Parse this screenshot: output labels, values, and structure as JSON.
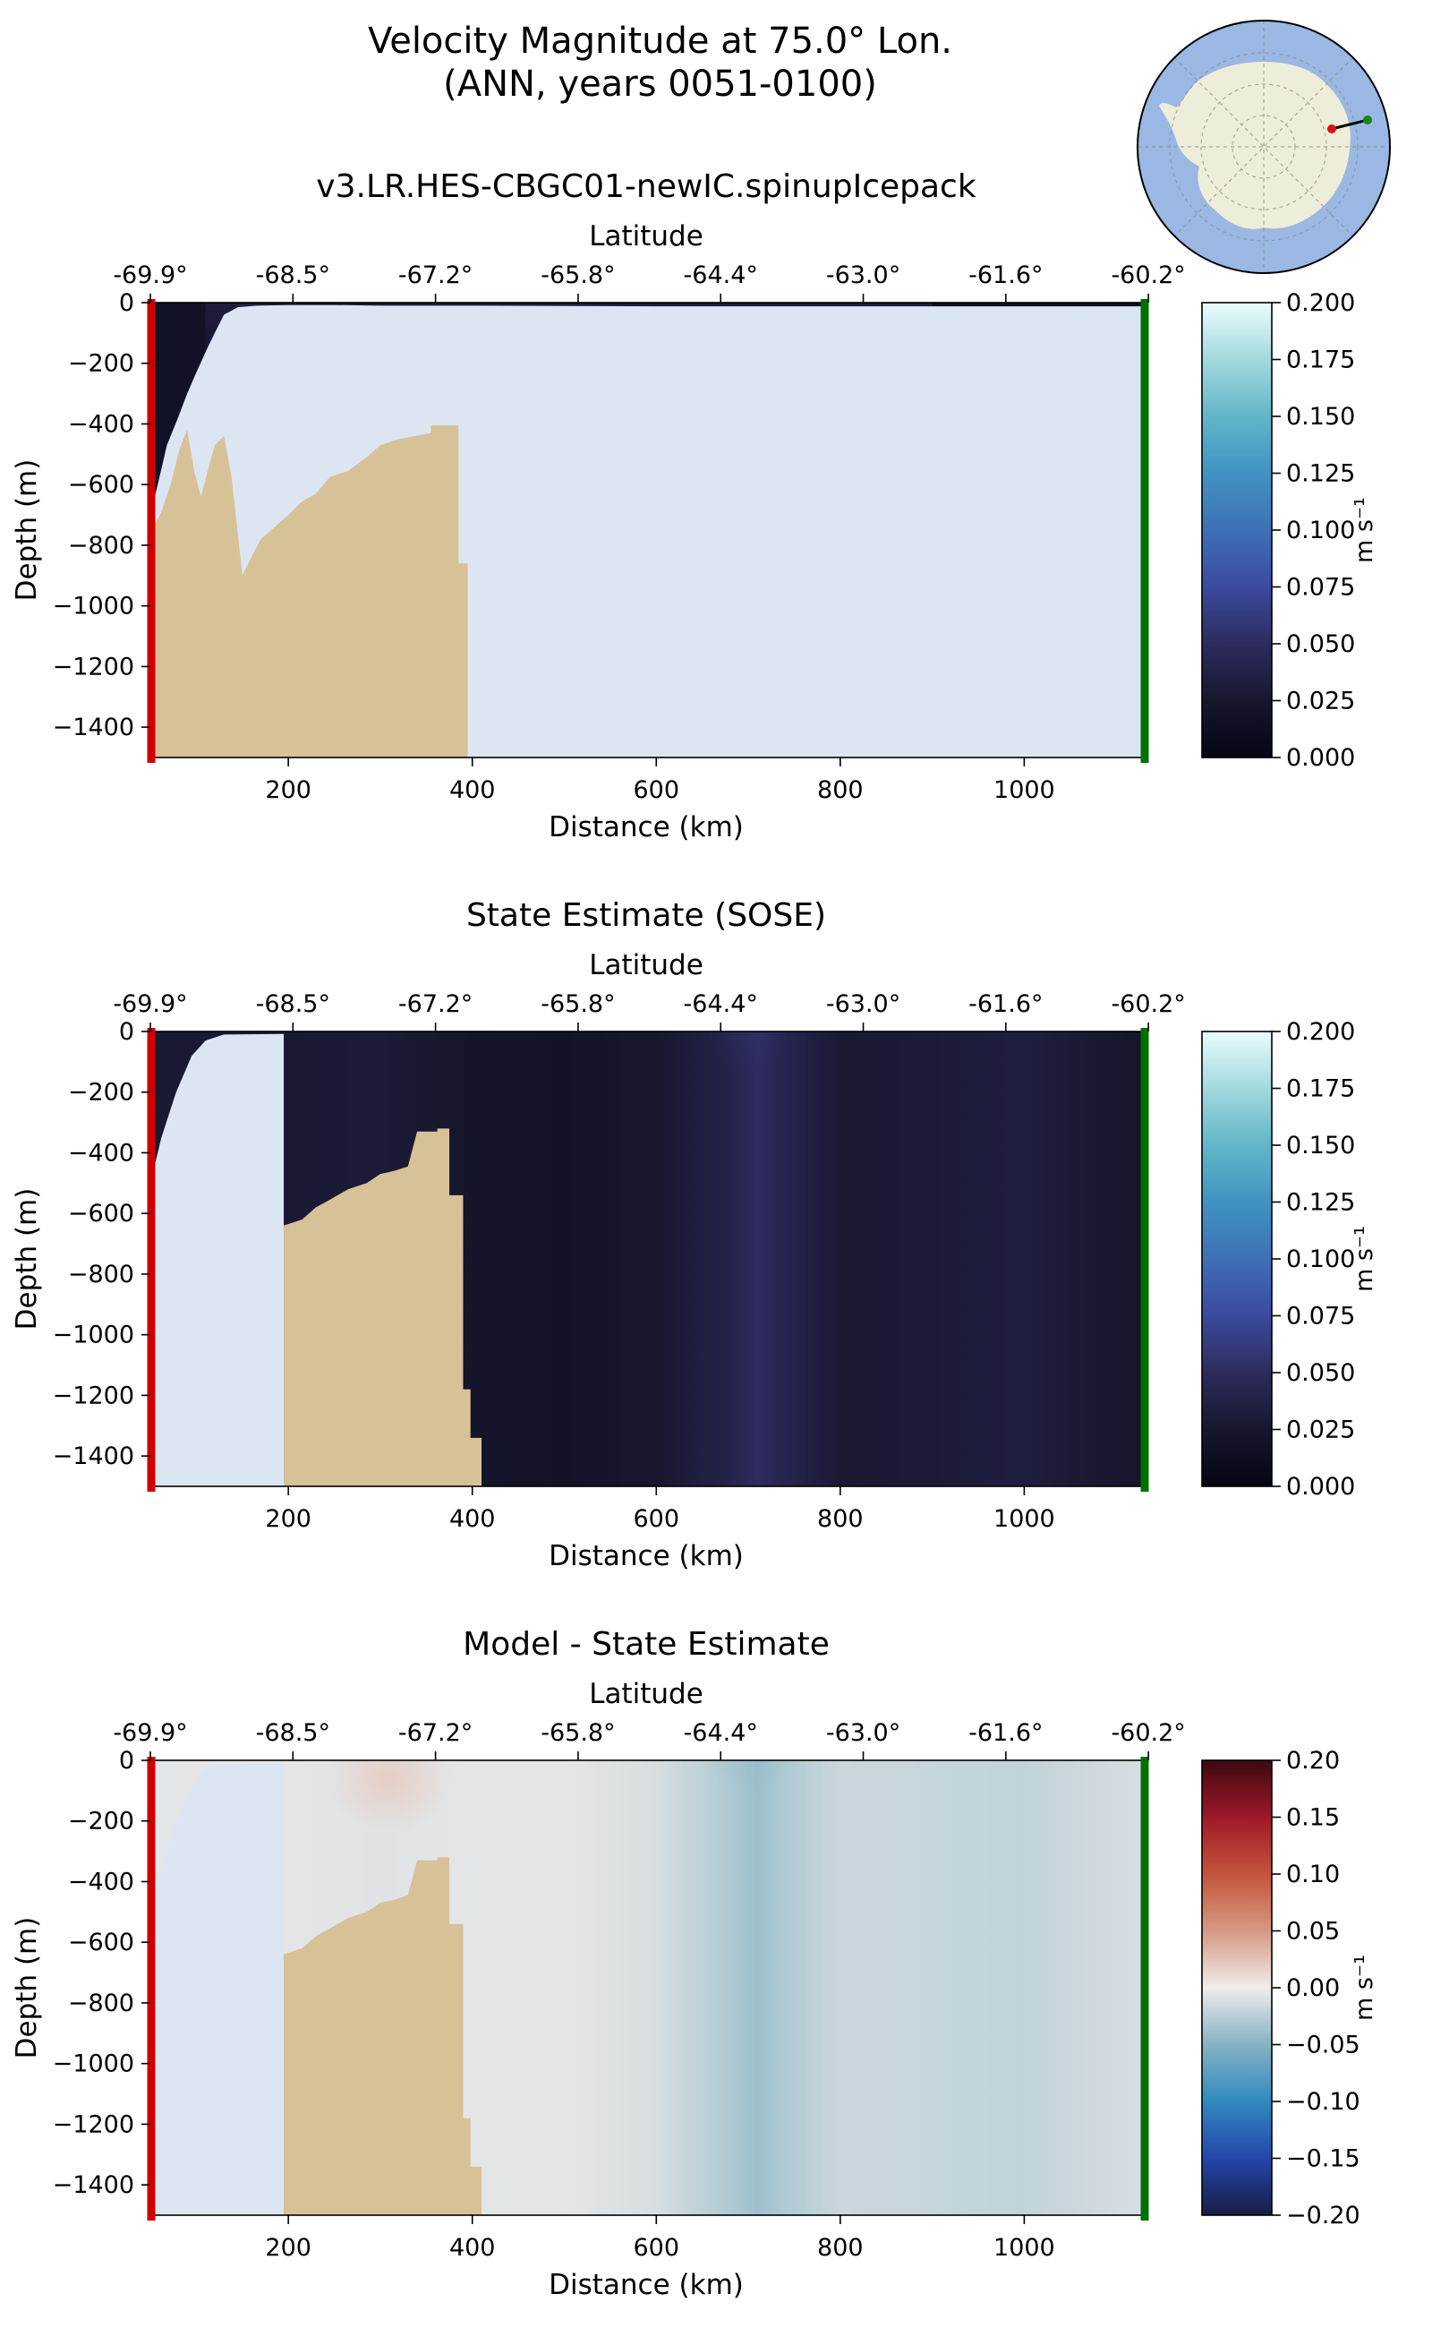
{
  "figure": {
    "title_line1": "Velocity Magnitude at 75.0° Lon.",
    "title_line2": "(ANN, years 0051-0100)"
  },
  "inset_map": {
    "region": "Antarctica",
    "projection": "south-polar-stereographic",
    "colors": {
      "ocean": "#9ab8e3",
      "land": "#eeedda",
      "start_marker": "#e01010",
      "end_marker": "#0e8a0e"
    }
  },
  "colors": {
    "land_mask": "#d7c196",
    "ice_shelf": "#dce6f2",
    "start_line": "#d00000",
    "end_line": "#007000"
  },
  "chart_data": [
    {
      "type": "heatmap",
      "title": "v3.LR.HES-CBGC01-newIC.spinupIcepack",
      "xlabel": "Distance (km)",
      "ylabel": "Depth (m)",
      "secondary_xlabel": "Latitude",
      "xlim": [
        50,
        1130
      ],
      "ylim": [
        -1500,
        0
      ],
      "x_ticks": [
        200,
        400,
        600,
        800,
        1000
      ],
      "y_ticks": [
        0,
        -200,
        -400,
        -600,
        -800,
        -1000,
        -1200,
        -1400
      ],
      "latitude_ticks": [
        {
          "distance": 50,
          "label": "-69.9°"
        },
        {
          "distance": 205,
          "label": "-68.5°"
        },
        {
          "distance": 360,
          "label": "-67.2°"
        },
        {
          "distance": 515,
          "label": "-65.8°"
        },
        {
          "distance": 670,
          "label": "-64.4°"
        },
        {
          "distance": 825,
          "label": "-63.0°"
        },
        {
          "distance": 980,
          "label": "-61.6°"
        },
        {
          "distance": 1135,
          "label": "-60.2°"
        }
      ],
      "colorbar": {
        "label": "m s⁻¹",
        "vmin": 0,
        "vmax": 0.2,
        "ticks": [
          "0.200",
          "0.175",
          "0.150",
          "0.125",
          "0.100",
          "0.075",
          "0.050",
          "0.025",
          "0.000"
        ],
        "colormap": "ice"
      },
      "field": {
        "background": 0.012,
        "columns": [
          {
            "x": 60,
            "v": 0.018
          },
          {
            "x": 200,
            "v": 0.022
          },
          {
            "x": 300,
            "v": 0.02
          },
          {
            "x": 400,
            "v": 0.014
          },
          {
            "x": 600,
            "v": 0.012
          },
          {
            "x": 700,
            "v": 0.013
          },
          {
            "x": 800,
            "v": 0.012
          },
          {
            "x": 1000,
            "v": 0.014
          },
          {
            "x": 1130,
            "v": 0.012
          }
        ],
        "surface_layer": {
          "depth": 250,
          "v": 0.035,
          "x_range": [
            110,
            900
          ]
        }
      },
      "topography": [
        [
          50,
          -1500
        ],
        [
          50,
          -700
        ],
        [
          58,
          -600
        ],
        [
          68,
          -470
        ],
        [
          80,
          -380
        ],
        [
          90,
          -300
        ],
        [
          100,
          -230
        ],
        [
          112,
          -150
        ],
        [
          120,
          -100
        ],
        [
          130,
          -40
        ],
        [
          145,
          -15
        ],
        [
          165,
          -10
        ],
        [
          200,
          -8
        ],
        [
          250,
          -8
        ],
        [
          300,
          -10
        ],
        [
          400,
          -10
        ],
        [
          600,
          -12
        ],
        [
          800,
          -12
        ],
        [
          1000,
          -12
        ],
        [
          1130,
          -12
        ],
        [
          1130,
          -1500
        ]
      ],
      "seafloor": [
        [
          50,
          -1500
        ],
        [
          50,
          -760
        ],
        [
          62,
          -690
        ],
        [
          72,
          -600
        ],
        [
          82,
          -480
        ],
        [
          90,
          -420
        ],
        [
          98,
          -560
        ],
        [
          105,
          -640
        ],
        [
          112,
          -560
        ],
        [
          120,
          -470
        ],
        [
          130,
          -440
        ],
        [
          138,
          -570
        ],
        [
          145,
          -760
        ],
        [
          150,
          -900
        ],
        [
          158,
          -850
        ],
        [
          170,
          -780
        ],
        [
          185,
          -740
        ],
        [
          200,
          -700
        ],
        [
          215,
          -655
        ],
        [
          230,
          -630
        ],
        [
          245,
          -575
        ],
        [
          265,
          -555
        ],
        [
          285,
          -510
        ],
        [
          300,
          -470
        ],
        [
          320,
          -450
        ],
        [
          355,
          -430
        ],
        [
          355,
          -405
        ],
        [
          385,
          -405
        ],
        [
          385,
          -860
        ],
        [
          395,
          -860
        ],
        [
          395,
          -1500
        ]
      ]
    },
    {
      "type": "heatmap",
      "title": "State Estimate (SOSE)",
      "xlabel": "Distance (km)",
      "ylabel": "Depth (m)",
      "secondary_xlabel": "Latitude",
      "xlim": [
        50,
        1130
      ],
      "ylim": [
        -1500,
        0
      ],
      "x_ticks": [
        200,
        400,
        600,
        800,
        1000
      ],
      "y_ticks": [
        0,
        -200,
        -400,
        -600,
        -800,
        -1000,
        -1200,
        -1400
      ],
      "latitude_ticks": [
        {
          "distance": 50,
          "label": "-69.9°"
        },
        {
          "distance": 205,
          "label": "-68.5°"
        },
        {
          "distance": 360,
          "label": "-67.2°"
        },
        {
          "distance": 515,
          "label": "-65.8°"
        },
        {
          "distance": 670,
          "label": "-64.4°"
        },
        {
          "distance": 825,
          "label": "-63.0°"
        },
        {
          "distance": 980,
          "label": "-61.6°"
        },
        {
          "distance": 1135,
          "label": "-60.2°"
        }
      ],
      "colorbar": {
        "label": "m s⁻¹",
        "vmin": 0,
        "vmax": 0.2,
        "ticks": [
          "0.200",
          "0.175",
          "0.150",
          "0.125",
          "0.100",
          "0.075",
          "0.050",
          "0.025",
          "0.000"
        ],
        "colormap": "ice"
      },
      "field": {
        "columns": [
          {
            "x": 200,
            "v": 0.028
          },
          {
            "x": 300,
            "v": 0.03
          },
          {
            "x": 400,
            "v": 0.022
          },
          {
            "x": 500,
            "v": 0.02
          },
          {
            "x": 600,
            "v": 0.025
          },
          {
            "x": 680,
            "v": 0.04
          },
          {
            "x": 710,
            "v": 0.05
          },
          {
            "x": 740,
            "v": 0.042
          },
          {
            "x": 800,
            "v": 0.028
          },
          {
            "x": 900,
            "v": 0.03
          },
          {
            "x": 1000,
            "v": 0.034
          },
          {
            "x": 1130,
            "v": 0.022
          }
        ],
        "surface_peak": {
          "x": 700,
          "v": 0.068
        }
      },
      "topography": [
        [
          50,
          -1500
        ],
        [
          50,
          -500
        ],
        [
          62,
          -350
        ],
        [
          78,
          -200
        ],
        [
          95,
          -80
        ],
        [
          110,
          -30
        ],
        [
          130,
          -10
        ],
        [
          195,
          -8
        ],
        [
          195,
          -1500
        ]
      ],
      "seafloor": [
        [
          195,
          -1500
        ],
        [
          195,
          -640
        ],
        [
          215,
          -620
        ],
        [
          230,
          -580
        ],
        [
          245,
          -555
        ],
        [
          265,
          -520
        ],
        [
          285,
          -500
        ],
        [
          300,
          -470
        ],
        [
          315,
          -460
        ],
        [
          330,
          -445
        ],
        [
          340,
          -330
        ],
        [
          362,
          -330
        ],
        [
          362,
          -320
        ],
        [
          375,
          -320
        ],
        [
          375,
          -540
        ],
        [
          390,
          -540
        ],
        [
          390,
          -1180
        ],
        [
          398,
          -1180
        ],
        [
          398,
          -1340
        ],
        [
          410,
          -1340
        ],
        [
          410,
          -1500
        ]
      ]
    },
    {
      "type": "heatmap",
      "title": "Model - State Estimate",
      "xlabel": "Distance (km)",
      "ylabel": "Depth (m)",
      "secondary_xlabel": "Latitude",
      "xlim": [
        50,
        1130
      ],
      "ylim": [
        -1500,
        0
      ],
      "x_ticks": [
        200,
        400,
        600,
        800,
        1000
      ],
      "y_ticks": [
        0,
        -200,
        -400,
        -600,
        -800,
        -1000,
        -1200,
        -1400
      ],
      "latitude_ticks": [
        {
          "distance": 50,
          "label": "-69.9°"
        },
        {
          "distance": 205,
          "label": "-68.5°"
        },
        {
          "distance": 360,
          "label": "-67.2°"
        },
        {
          "distance": 515,
          "label": "-65.8°"
        },
        {
          "distance": 670,
          "label": "-64.4°"
        },
        {
          "distance": 825,
          "label": "-63.0°"
        },
        {
          "distance": 980,
          "label": "-61.6°"
        },
        {
          "distance": 1135,
          "label": "-60.2°"
        }
      ],
      "colorbar": {
        "label": "m s⁻¹",
        "vmin": -0.2,
        "vmax": 0.2,
        "ticks": [
          "0.20",
          "0.15",
          "0.10",
          "0.05",
          "0.00",
          "−0.05",
          "−0.10",
          "−0.15",
          "−0.20"
        ],
        "colormap": "balance"
      },
      "field": {
        "columns": [
          {
            "x": 200,
            "v": -0.006
          },
          {
            "x": 300,
            "v": -0.008
          },
          {
            "x": 400,
            "v": -0.006
          },
          {
            "x": 500,
            "v": -0.006
          },
          {
            "x": 600,
            "v": -0.012
          },
          {
            "x": 680,
            "v": -0.03
          },
          {
            "x": 710,
            "v": -0.038
          },
          {
            "x": 740,
            "v": -0.03
          },
          {
            "x": 800,
            "v": -0.018
          },
          {
            "x": 900,
            "v": -0.02
          },
          {
            "x": 1000,
            "v": -0.022
          },
          {
            "x": 1130,
            "v": -0.012
          }
        ],
        "surface_peak": {
          "x": 700,
          "v": -0.06
        },
        "positive_patch": {
          "x": 310,
          "depth": 60,
          "v": 0.02
        }
      },
      "topography": [
        [
          50,
          -1500
        ],
        [
          50,
          -500
        ],
        [
          62,
          -350
        ],
        [
          78,
          -200
        ],
        [
          95,
          -80
        ],
        [
          110,
          -30
        ],
        [
          130,
          -10
        ],
        [
          195,
          -8
        ],
        [
          195,
          -1500
        ]
      ],
      "seafloor": [
        [
          195,
          -1500
        ],
        [
          195,
          -640
        ],
        [
          215,
          -620
        ],
        [
          230,
          -580
        ],
        [
          245,
          -555
        ],
        [
          265,
          -520
        ],
        [
          285,
          -500
        ],
        [
          300,
          -470
        ],
        [
          315,
          -460
        ],
        [
          330,
          -445
        ],
        [
          340,
          -330
        ],
        [
          362,
          -330
        ],
        [
          362,
          -320
        ],
        [
          375,
          -320
        ],
        [
          375,
          -540
        ],
        [
          390,
          -540
        ],
        [
          390,
          -1180
        ],
        [
          398,
          -1180
        ],
        [
          398,
          -1340
        ],
        [
          410,
          -1340
        ],
        [
          410,
          -1500
        ]
      ]
    }
  ]
}
